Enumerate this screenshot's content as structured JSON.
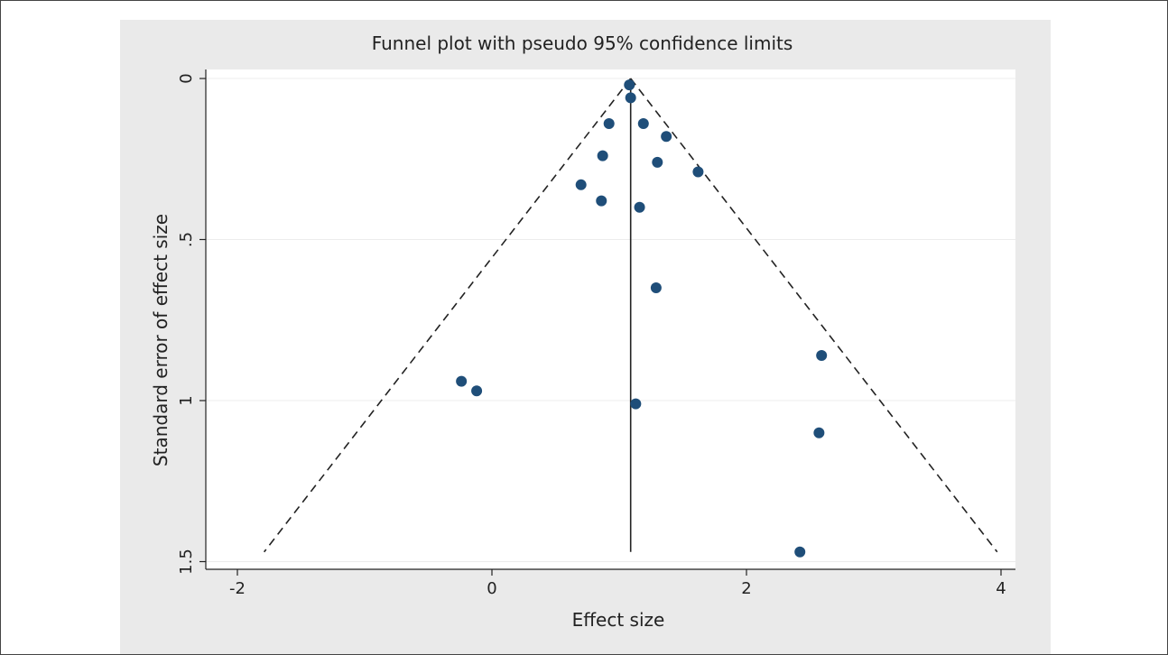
{
  "chart_data": {
    "type": "scatter",
    "title": "Funnel plot with pseudo 95% confidence limits",
    "xlabel": "Effect size",
    "ylabel": "Standard error of effect size",
    "xlim": [
      -2.1,
      4.1
    ],
    "ylim": [
      0,
      1.52
    ],
    "y_reversed": true,
    "x_ticks": [
      -2,
      0,
      2,
      4
    ],
    "x_tick_labels": [
      "-2",
      "0",
      "2",
      "4"
    ],
    "y_ticks": [
      0,
      0.5,
      1,
      1.5
    ],
    "y_tick_labels": [
      "0",
      ".5",
      "1",
      "1.5"
    ],
    "grid": "horizontal",
    "pooled_effect": 1.09,
    "pooled_line_ymax": 1.47,
    "confidence_limits": [
      {
        "se": 0,
        "lower": 1.09,
        "upper": 1.09
      },
      {
        "se": 1.47,
        "lower": -1.79,
        "upper": 3.97
      }
    ],
    "points": [
      {
        "x": 1.08,
        "y": 0.02
      },
      {
        "x": 1.09,
        "y": 0.06
      },
      {
        "x": 0.92,
        "y": 0.14
      },
      {
        "x": 1.19,
        "y": 0.14
      },
      {
        "x": 1.37,
        "y": 0.18
      },
      {
        "x": 0.87,
        "y": 0.24
      },
      {
        "x": 1.3,
        "y": 0.26
      },
      {
        "x": 1.62,
        "y": 0.29
      },
      {
        "x": 0.7,
        "y": 0.33
      },
      {
        "x": 0.86,
        "y": 0.38
      },
      {
        "x": 1.16,
        "y": 0.4
      },
      {
        "x": 1.29,
        "y": 0.65
      },
      {
        "x": 2.59,
        "y": 0.86
      },
      {
        "x": -0.24,
        "y": 0.94
      },
      {
        "x": -0.12,
        "y": 0.97
      },
      {
        "x": 1.13,
        "y": 1.01
      },
      {
        "x": 2.57,
        "y": 1.1
      },
      {
        "x": 2.42,
        "y": 1.47
      }
    ],
    "colors": {
      "point": "#1f4e79",
      "panel_background": "#eaeaea",
      "plot_background": "#ffffff",
      "line": "#222222"
    }
  }
}
